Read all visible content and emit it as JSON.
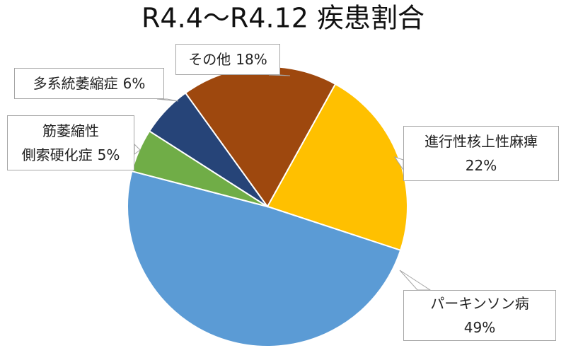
{
  "chart_data": {
    "type": "pie",
    "title": "R4.4～R4.12 疾患割合",
    "categories": [
      "進行性核上性麻痺",
      "パーキンソン病",
      "筋萎縮性\n側索硬化症",
      "多系統萎縮症",
      "その他"
    ],
    "values": [
      22,
      49,
      5,
      6,
      18
    ],
    "value_labels": [
      "22%",
      "49%",
      "5%",
      "6%",
      "18%"
    ],
    "colors": [
      "#ffc000",
      "#5b9bd5",
      "#70ad47",
      "#264478",
      "#9e480e"
    ]
  }
}
